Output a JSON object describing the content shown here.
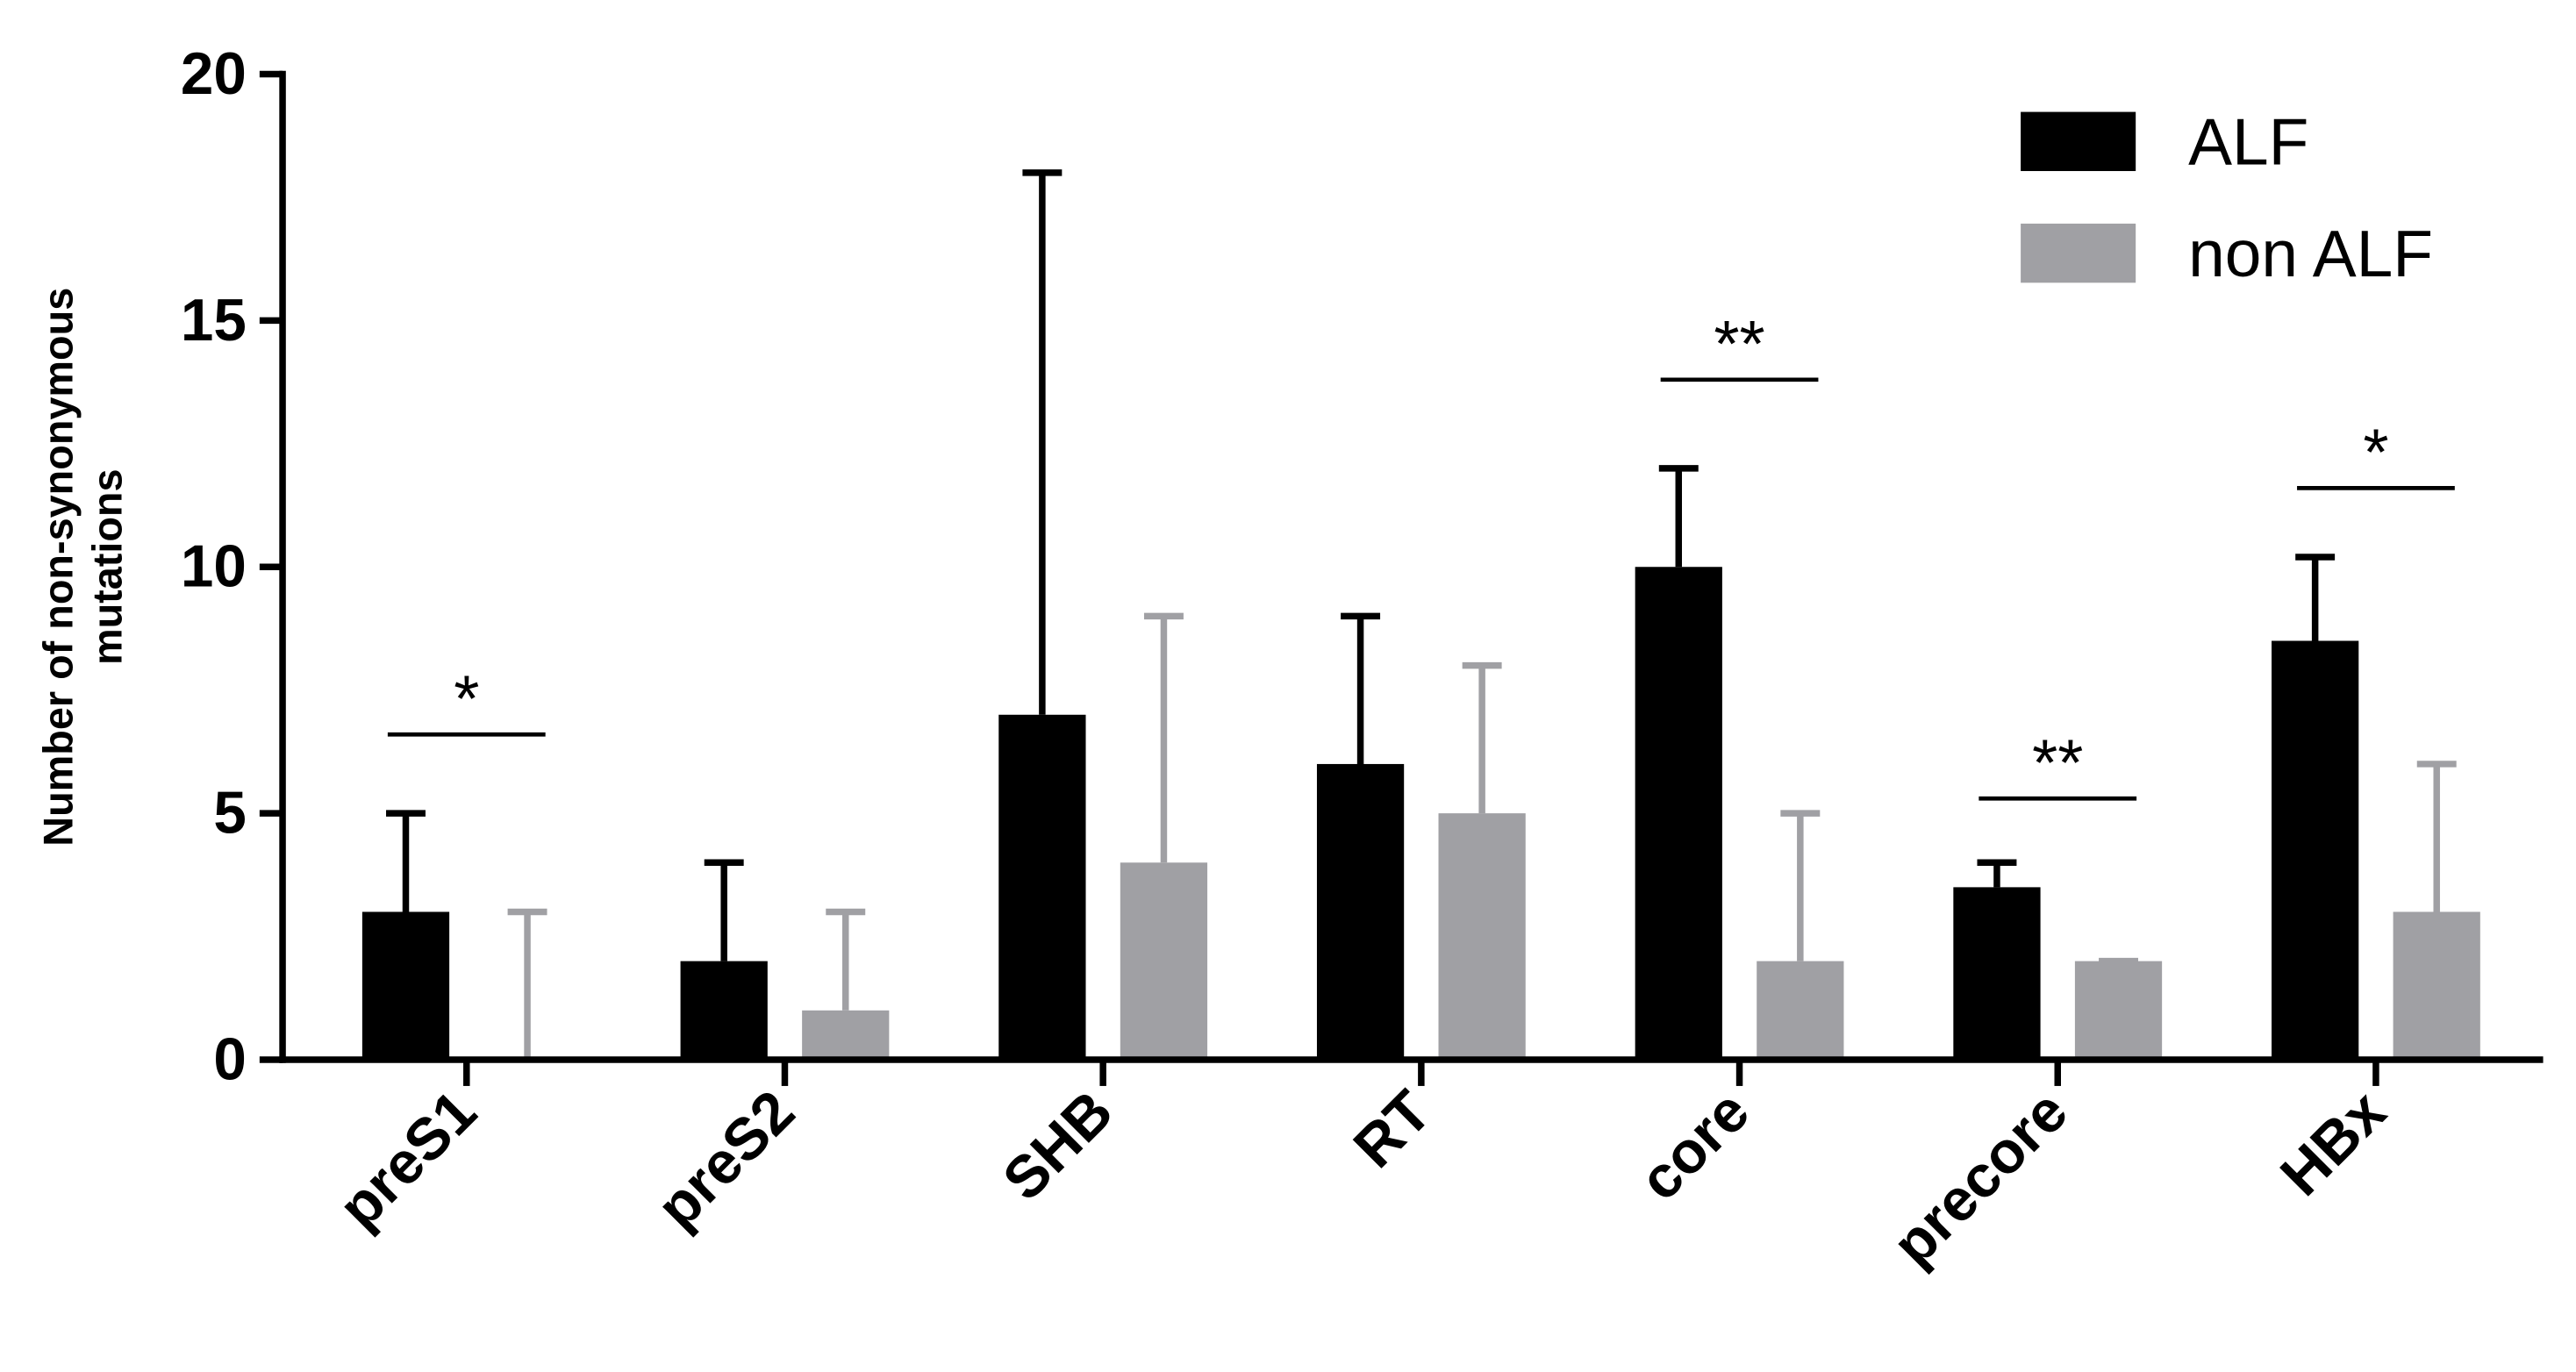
{
  "chart_data": {
    "type": "bar",
    "ylabel": [
      "Number of non-synonymous",
      "mutations"
    ],
    "categories": [
      "preS1",
      "preS2",
      "SHB",
      "RT",
      "core",
      "precore",
      "HBx"
    ],
    "series": [
      {
        "name": "ALF",
        "color": "#000000",
        "values": [
          3,
          2,
          7,
          6,
          10,
          3.5,
          8.5
        ],
        "errors": [
          2,
          2,
          11,
          3,
          2,
          0.5,
          1.7
        ]
      },
      {
        "name": "non ALF",
        "color": "#a0a0a4",
        "values": [
          0,
          1,
          4,
          5,
          2,
          2,
          3
        ],
        "errors": [
          3,
          2,
          5,
          3,
          3,
          0,
          3
        ]
      }
    ],
    "ylim": [
      0,
      20
    ],
    "yticks": [
      0,
      5,
      10,
      15,
      20
    ],
    "legend": "upper right",
    "annotations": [
      {
        "text": "*",
        "category": "preS1",
        "y": 6.6
      },
      {
        "text": "**",
        "category": "core",
        "y": 13.8
      },
      {
        "text": "**",
        "category": "precore",
        "y": 5.3
      },
      {
        "text": "*",
        "category": "HBx",
        "y": 11.6
      }
    ]
  }
}
